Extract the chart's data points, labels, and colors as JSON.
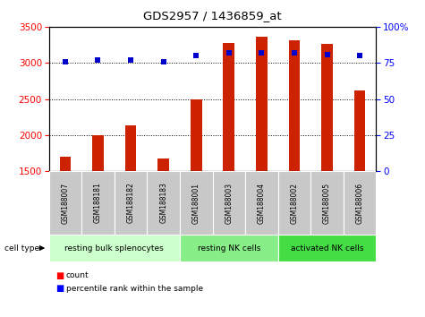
{
  "title": "GDS2957 / 1436859_at",
  "samples": [
    "GSM188007",
    "GSM188181",
    "GSM188182",
    "GSM188183",
    "GSM188001",
    "GSM188003",
    "GSM188004",
    "GSM188002",
    "GSM188005",
    "GSM188006"
  ],
  "counts": [
    1700,
    2000,
    2130,
    1680,
    2500,
    3280,
    3360,
    3320,
    3270,
    2620
  ],
  "percentiles": [
    76,
    77,
    77,
    76,
    80,
    82,
    82,
    82,
    81,
    80
  ],
  "ylim_left": [
    1500,
    3500
  ],
  "ylim_right": [
    0,
    100
  ],
  "yticks_left": [
    1500,
    2000,
    2500,
    3000,
    3500
  ],
  "yticks_right": [
    0,
    25,
    50,
    75,
    100
  ],
  "cell_groups": [
    {
      "label": "resting bulk splenocytes",
      "start": 0,
      "end": 4
    },
    {
      "label": "resting NK cells",
      "start": 4,
      "end": 7
    },
    {
      "label": "activated NK cells",
      "start": 7,
      "end": 10
    }
  ],
  "group_colors": [
    "#ccffcc",
    "#88ee88",
    "#44dd44"
  ],
  "bar_color": "#cc2200",
  "dot_color": "#0000cc",
  "bar_width": 0.35,
  "tick_bg_color": "#c8c8c8",
  "label_box_color": "#c8c8c8"
}
